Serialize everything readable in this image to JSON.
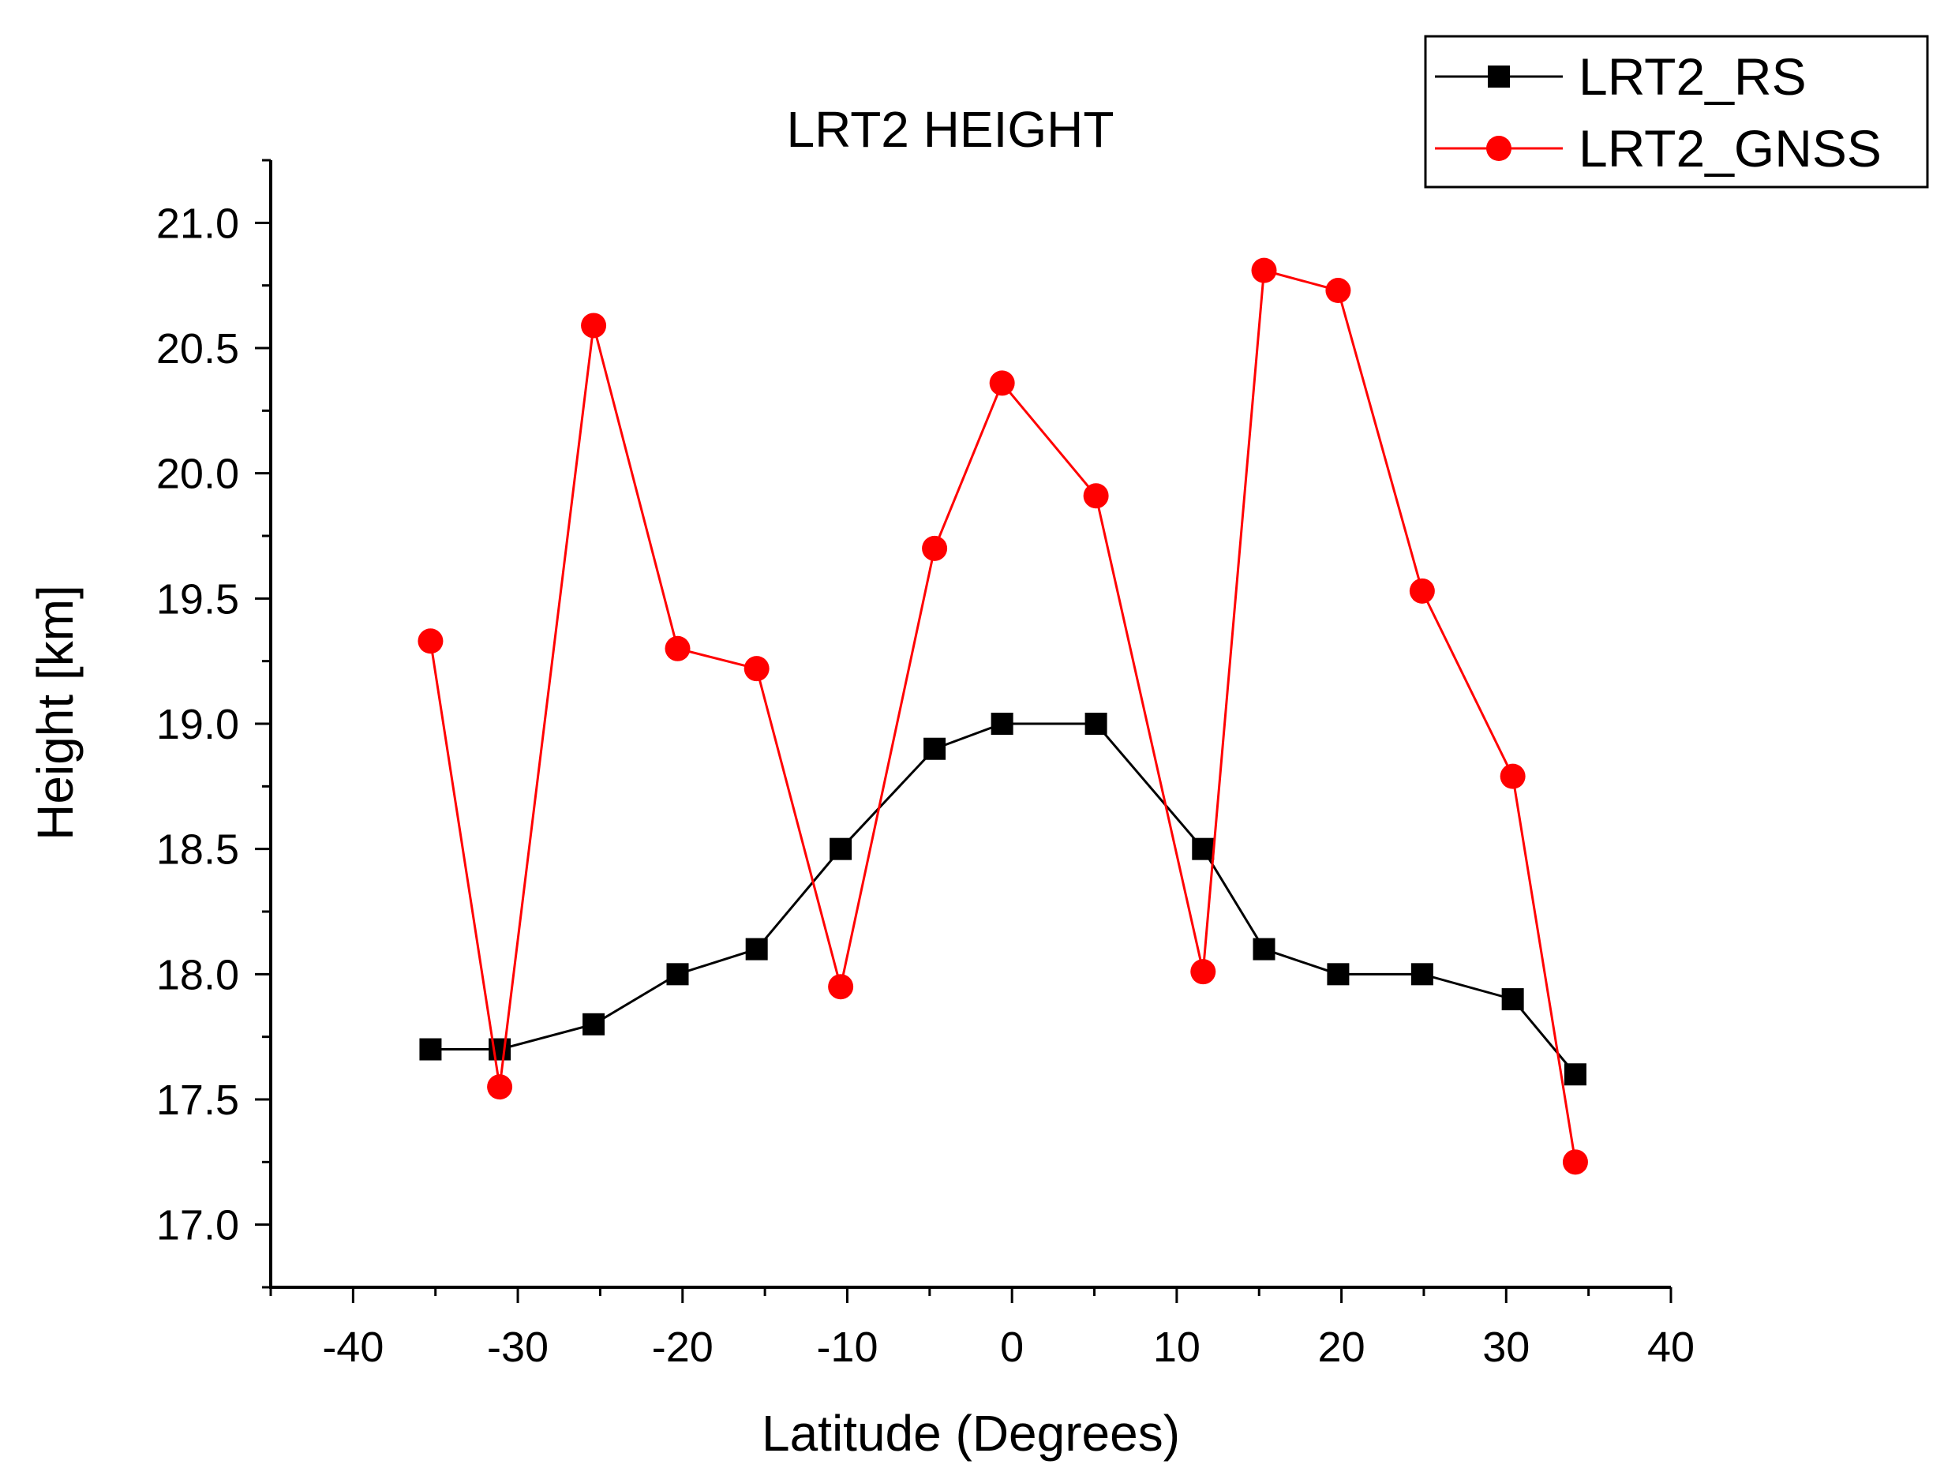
{
  "chart_data": {
    "type": "line",
    "title": "LRT2 HEIGHT",
    "xlabel": "Latitude (Degrees)",
    "ylabel": "Height [km]",
    "xlim": [
      -45,
      40
    ],
    "ylim": [
      16.75,
      21.25
    ],
    "xticks": [
      -40,
      -30,
      -20,
      -10,
      0,
      10,
      20,
      30,
      40
    ],
    "xtick_labels": [
      "-40",
      "-30",
      "-20",
      "-10",
      "0",
      "10",
      "20",
      "30",
      "40"
    ],
    "yticks": [
      17.0,
      17.5,
      18.0,
      18.5,
      19.0,
      19.5,
      20.0,
      20.5,
      21.0
    ],
    "ytick_labels": [
      "17.0",
      "17.5",
      "18.0",
      "18.5",
      "19.0",
      "19.5",
      "20.0",
      "20.5",
      "21.0"
    ],
    "grid": false,
    "legend_position": "top-right",
    "series": [
      {
        "name": "LRT2_RS",
        "color": "#000000",
        "marker": "square",
        "x": [
          -35.3,
          -31.1,
          -25.4,
          -20.3,
          -15.5,
          -10.4,
          -4.7,
          -0.6,
          5.1,
          11.6,
          15.3,
          19.8,
          24.9,
          30.4,
          34.2
        ],
        "y": [
          17.7,
          17.7,
          17.8,
          18.0,
          18.1,
          18.5,
          18.9,
          19.0,
          19.0,
          18.5,
          18.1,
          18.0,
          18.0,
          17.9,
          17.6
        ]
      },
      {
        "name": "LRT2_GNSS",
        "color": "#ff0000",
        "marker": "circle",
        "x": [
          -35.3,
          -31.1,
          -25.4,
          -20.3,
          -15.5,
          -10.4,
          -4.7,
          -0.6,
          5.1,
          11.6,
          15.3,
          19.8,
          24.9,
          30.4,
          34.2
        ],
        "y": [
          19.33,
          17.55,
          20.59,
          19.3,
          19.22,
          17.95,
          19.7,
          20.36,
          19.91,
          18.01,
          20.81,
          20.73,
          19.53,
          18.79,
          17.25
        ]
      }
    ]
  }
}
